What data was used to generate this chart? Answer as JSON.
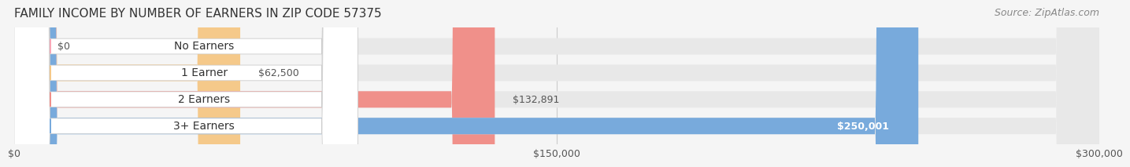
{
  "title": "FAMILY INCOME BY NUMBER OF EARNERS IN ZIP CODE 57375",
  "source": "Source: ZipAtlas.com",
  "categories": [
    "No Earners",
    "1 Earner",
    "2 Earners",
    "3+ Earners"
  ],
  "values": [
    0,
    62500,
    132891,
    250001
  ],
  "bar_colors": [
    "#f9a8b8",
    "#f5c98a",
    "#f0908a",
    "#78aadc"
  ],
  "label_colors": [
    "#f9a8b8",
    "#f5c98a",
    "#f0908a",
    "#78aadc"
  ],
  "value_labels": [
    "$0",
    "$62,500",
    "$132,891",
    "$250,001"
  ],
  "value_label_inside": [
    false,
    false,
    false,
    true
  ],
  "xlim": [
    0,
    300000
  ],
  "xticks": [
    0,
    150000,
    300000
  ],
  "xticklabels": [
    "$0",
    "$150,000",
    "$300,000"
  ],
  "bg_color": "#f5f5f5",
  "bar_bg_color": "#e8e8e8",
  "bar_height": 0.62,
  "title_fontsize": 11,
  "source_fontsize": 9,
  "label_fontsize": 10,
  "value_fontsize": 9
}
